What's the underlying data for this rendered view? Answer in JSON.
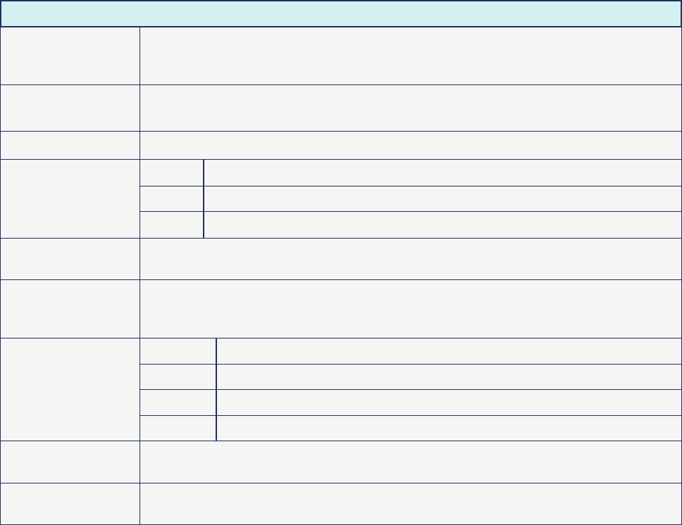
{
  "table": {
    "header_bg": "#d4f0f0",
    "cell_bg": "#f5f5f3",
    "border_color": "#1f3060"
  }
}
